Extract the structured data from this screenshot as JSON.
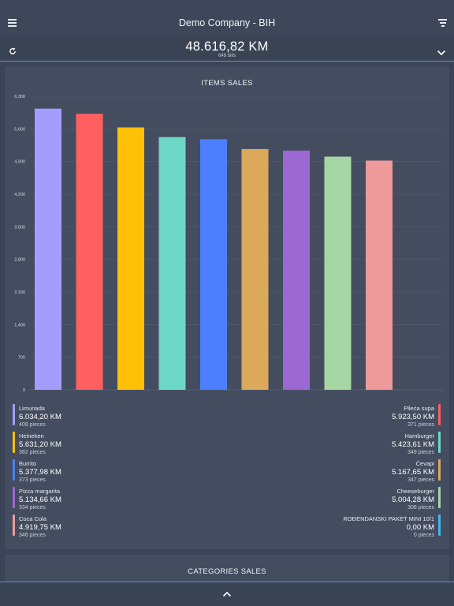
{
  "header": {
    "title": "Demo Company - BIH",
    "menu_icon": "hamburger-menu-icon",
    "filter_icon": "filter-icon"
  },
  "summary": {
    "total": "48.616,82 KM",
    "bills": "648 bills",
    "refresh_icon": "refresh-icon",
    "expand_icon": "chevron-down-icon"
  },
  "items_sales": {
    "title": "ITEMS SALES",
    "legend": [
      {
        "name": "Limunada",
        "amount": "6.034,20 KM",
        "pieces": "409 pieces",
        "color": "#a59cff"
      },
      {
        "name": "Pileća supa",
        "amount": "5.923,50 KM",
        "pieces": "371 pieces",
        "color": "#ff5f5f"
      },
      {
        "name": "Heineken",
        "amount": "5.631,20 KM",
        "pieces": "382 pieces",
        "color": "#ffc107"
      },
      {
        "name": "Hamburger",
        "amount": "5.423,61 KM",
        "pieces": "349 pieces",
        "color": "#6dd8c6"
      },
      {
        "name": "Burrito",
        "amount": "5.377,98 KM",
        "pieces": "373 pieces",
        "color": "#4d80ff"
      },
      {
        "name": "Ćevapi",
        "amount": "5.167,65 KM",
        "pieces": "347 pieces",
        "color": "#dba95b"
      },
      {
        "name": "Pizza margarita",
        "amount": "5.134,66 KM",
        "pieces": "334 pieces",
        "color": "#9b67d1"
      },
      {
        "name": "Cheeseburger",
        "amount": "5.004,28 KM",
        "pieces": "306 pieces",
        "color": "#a7d6a5"
      },
      {
        "name": "Coca Cola",
        "amount": "4.919,75 KM",
        "pieces": "346 pieces",
        "color": "#ef9a9a"
      },
      {
        "name": "ROĐENDANSKI PAKET MINI 10/1",
        "amount": "0,00 KM",
        "pieces": "0 pieces",
        "color": "#3fb8f0"
      }
    ]
  },
  "chart_data": {
    "type": "bar",
    "categories": [
      "Limunada",
      "Pileća supa",
      "Heineken",
      "Hamburger",
      "Burrito",
      "Ćevapi",
      "Pizza margarita",
      "Cheeseburger",
      "Coca Cola"
    ],
    "values": [
      6034.2,
      5923.5,
      5631.2,
      5423.61,
      5377.98,
      5167.65,
      5134.66,
      5004.28,
      4919.75
    ],
    "colors": [
      "#a59cff",
      "#ff5f5f",
      "#ffc107",
      "#6dd8c6",
      "#4d80ff",
      "#dba95b",
      "#9b67d1",
      "#a7d6a5",
      "#ef9a9a"
    ],
    "ylim": [
      0,
      6300
    ],
    "yticks": [
      0,
      700,
      1400,
      2100,
      2800,
      3500,
      4200,
      4900,
      5600,
      6300
    ],
    "ytick_labels": [
      "0",
      "700",
      "1,400",
      "2,100",
      "2,800",
      "3,500",
      "4,200",
      "4,900",
      "5,600",
      "6,300"
    ],
    "grid": true,
    "legend": "bottom"
  },
  "categories_sales": {
    "title": "CATEGORIES SALES"
  },
  "footer": {
    "collapse_icon": "chevron-up-icon"
  }
}
